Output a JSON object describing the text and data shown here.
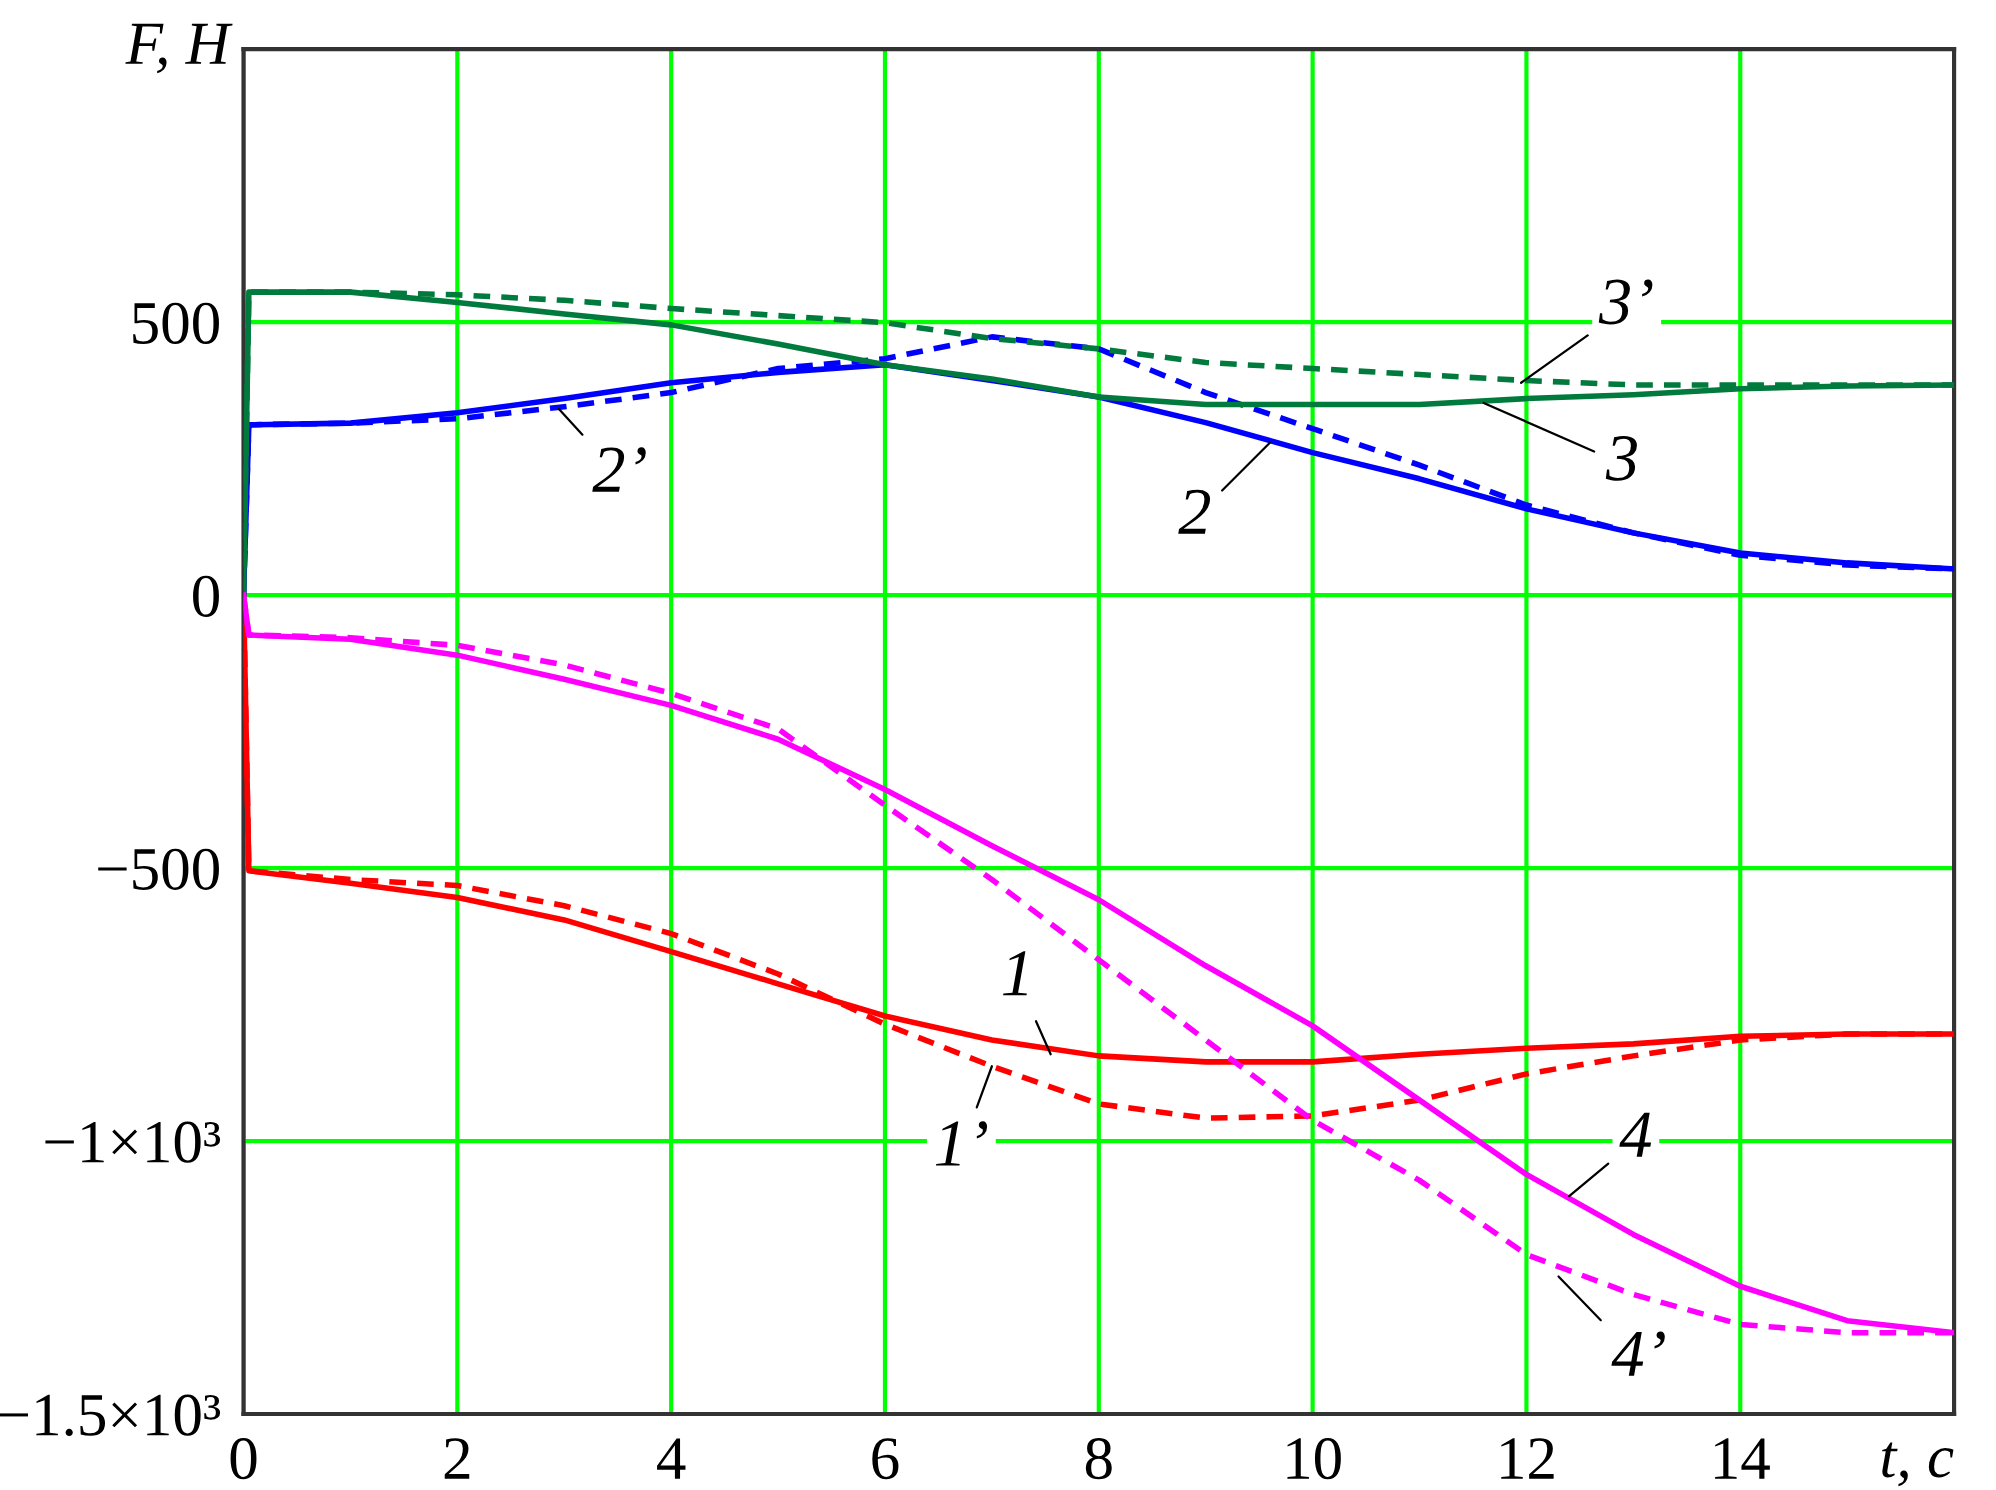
{
  "chart_data": {
    "type": "line",
    "xlabel": "t, c",
    "ylabel": "F, H",
    "x": [
      0,
      0.05,
      1,
      2,
      3,
      4,
      5,
      6,
      7,
      8,
      9,
      10,
      11,
      12,
      13,
      14,
      15,
      16
    ],
    "series": [
      {
        "color": "#ff0000",
        "line_style": "solid",
        "values": [
          0,
          -505,
          -528,
          -554,
          -595,
          -653,
          -712,
          -771,
          -815,
          -844,
          -855,
          -855,
          -841,
          -830,
          -822,
          -808,
          -804,
          -804
        ]
      },
      {
        "color": "#ff0000",
        "line_style": "dashed",
        "values": [
          0,
          -505,
          -521,
          -532,
          -569,
          -620,
          -694,
          -786,
          -863,
          -932,
          -958,
          -954,
          -925,
          -877,
          -844,
          -815,
          -804,
          -804
        ]
      },
      {
        "color": "#0000ff",
        "line_style": "solid",
        "values": [
          0,
          312,
          315,
          334,
          360,
          389,
          408,
          422,
          393,
          363,
          316,
          261,
          213,
          158,
          114,
          77,
          59,
          48
        ]
      },
      {
        "color": "#0000ff",
        "line_style": "dashed",
        "values": [
          0,
          312,
          315,
          323,
          345,
          371,
          415,
          433,
          473,
          451,
          371,
          305,
          238,
          165,
          114,
          73,
          55,
          48
        ]
      },
      {
        "color": "#007a3d",
        "line_style": "solid",
        "values": [
          0,
          555,
          555,
          536,
          515,
          495,
          460,
          422,
          396,
          363,
          349,
          349,
          349,
          360,
          367,
          378,
          383,
          385
        ]
      },
      {
        "color": "#007a3d",
        "line_style": "dashed",
        "values": [
          0,
          555,
          555,
          550,
          540,
          525,
          512,
          499,
          470,
          451,
          426,
          415,
          404,
          393,
          385,
          385,
          385,
          385
        ]
      },
      {
        "color": "#ff00ff",
        "line_style": "solid",
        "values": [
          0,
          -73,
          -81,
          -110,
          -154,
          -202,
          -264,
          -356,
          -459,
          -558,
          -679,
          -789,
          -925,
          -1061,
          -1171,
          -1266,
          -1329,
          -1351
        ]
      },
      {
        "color": "#ff00ff",
        "line_style": "dashed",
        "values": [
          0,
          -73,
          -78,
          -92,
          -128,
          -180,
          -245,
          -385,
          -521,
          -668,
          -815,
          -962,
          -1072,
          -1208,
          -1281,
          -1336,
          -1351,
          -1351
        ]
      }
    ],
    "xlim": [
      0,
      16
    ],
    "xticks": [
      0,
      2,
      4,
      6,
      8,
      10,
      12,
      14
    ],
    "ylim": [
      -1500,
      1000
    ],
    "yticks": [
      {
        "value": -1500,
        "label": "−1.5×10³"
      },
      {
        "value": -1000,
        "label": "−1×10³"
      },
      {
        "value": -500,
        "label": "−500"
      },
      0,
      500
    ],
    "grid": true,
    "legend": false,
    "annotations": [
      {
        "text": "1",
        "x": 7.55,
        "y": -841
      },
      {
        "text": "1’",
        "x": 7,
        "y": -863
      },
      {
        "text": "2",
        "x": 9.6,
        "y": 279
      },
      {
        "text": "2’",
        "x": 2.95,
        "y": 341
      },
      {
        "text": "3",
        "x": 11.6,
        "y": 352
      },
      {
        "text": "3’",
        "x": 11.95,
        "y": 389
      },
      {
        "text": "4",
        "x": 12.4,
        "y": -1101
      },
      {
        "text": "4’",
        "x": 12.3,
        "y": -1248
      }
    ]
  }
}
